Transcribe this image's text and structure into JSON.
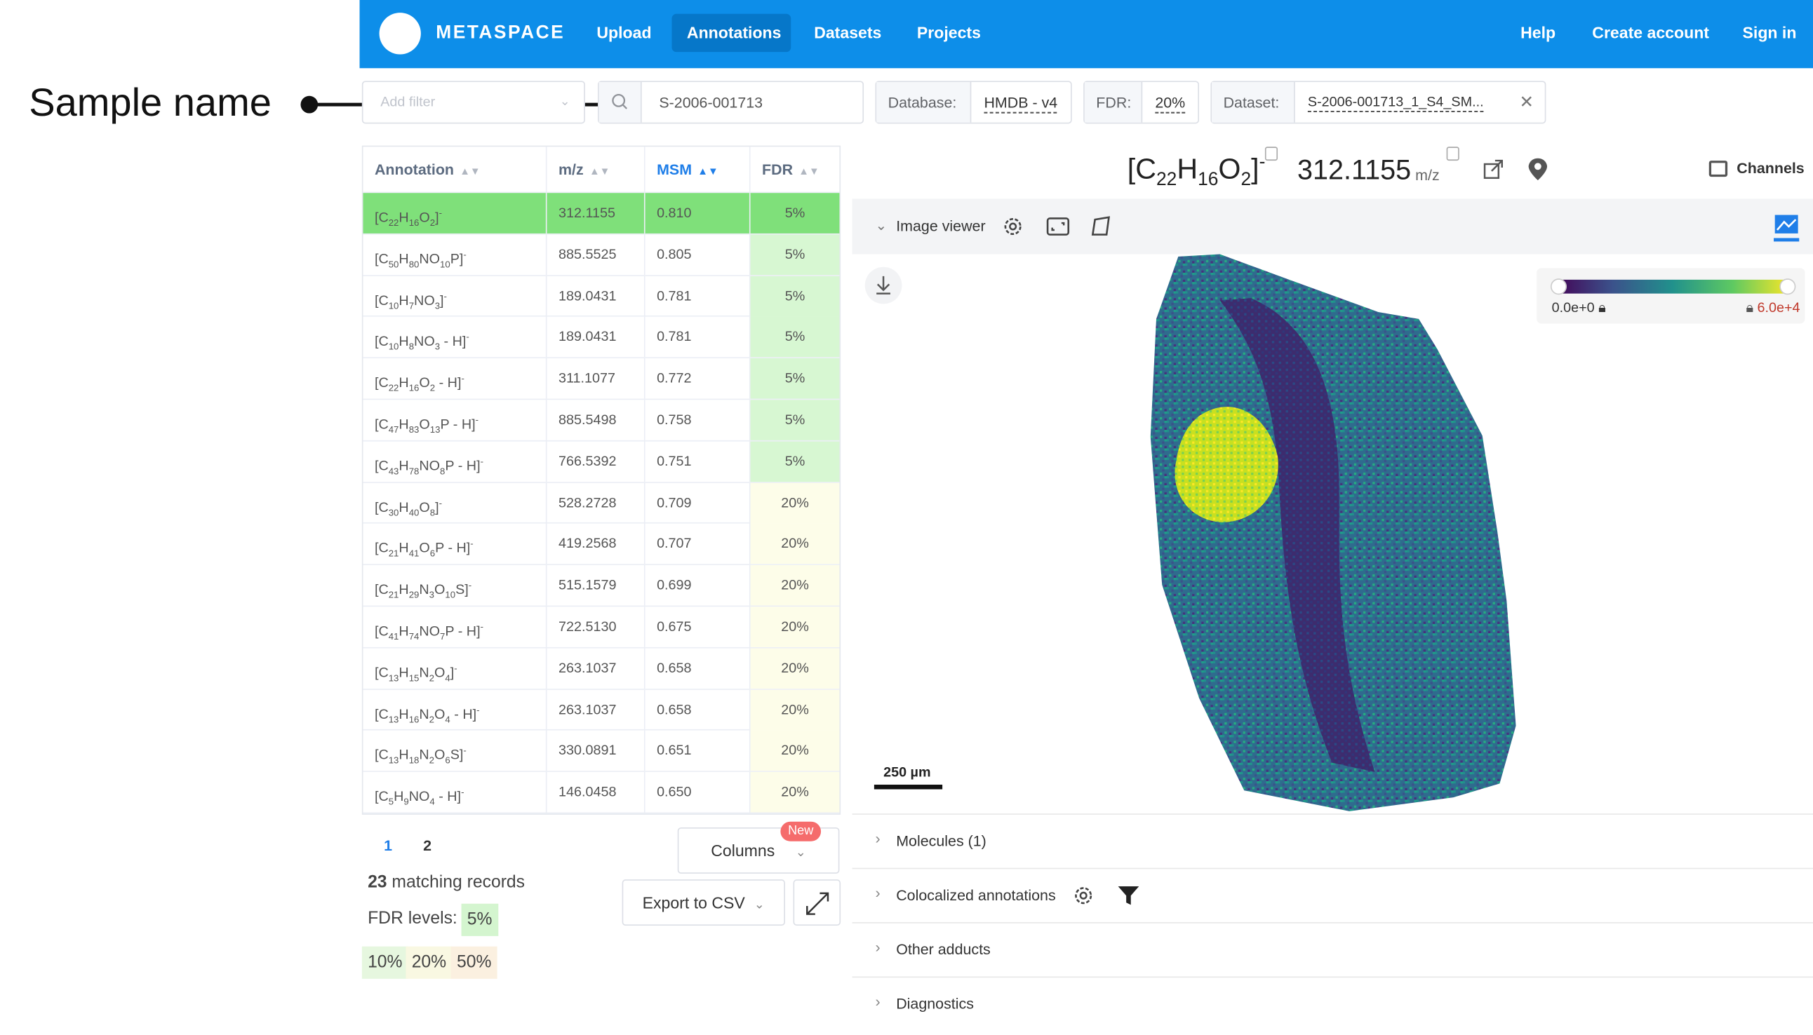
{
  "callout": {
    "label": "Sample name"
  },
  "header": {
    "logo_text": "METASPACE",
    "nav": [
      "Upload",
      "Annotations",
      "Datasets",
      "Projects"
    ],
    "right_nav": [
      "Help",
      "Create account",
      "Sign in"
    ],
    "colors": {
      "bar": "#0d8ee9",
      "active": "#0677c9"
    }
  },
  "filters": {
    "add_filter_placeholder": "Add filter",
    "search_value": "S-2006-001713",
    "database_label": "Database:",
    "database_value": "HMDB - v4",
    "fdr_label": "FDR:",
    "fdr_value": "20%",
    "dataset_label": "Dataset:",
    "dataset_value": "S-2006-001713_1_S4_SM..."
  },
  "table": {
    "headers": [
      "Annotation",
      "m/z",
      "MSM",
      "FDR"
    ],
    "rows": [
      {
        "formula": [
          "[C",
          "22",
          "H",
          "16",
          "O",
          "2",
          "]",
          "-"
        ],
        "mz": "312.1155",
        "msm": "0.810",
        "fdr": "5%"
      },
      {
        "formula": [
          "[C",
          "50",
          "H",
          "80",
          "NO",
          "10",
          "P]",
          "-"
        ],
        "mz": "885.5525",
        "msm": "0.805",
        "fdr": "5%"
      },
      {
        "formula": [
          "[C",
          "10",
          "H",
          "7",
          "NO",
          "3",
          "]",
          "-"
        ],
        "mz": "189.0431",
        "msm": "0.781",
        "fdr": "5%"
      },
      {
        "formula": [
          "[C",
          "10",
          "H",
          "8",
          "NO",
          "3",
          " - H]",
          "-"
        ],
        "mz": "189.0431",
        "msm": "0.781",
        "fdr": "5%"
      },
      {
        "formula": [
          "[C",
          "22",
          "H",
          "16",
          "O",
          "2",
          " - H]",
          "-"
        ],
        "mz": "311.1077",
        "msm": "0.772",
        "fdr": "5%"
      },
      {
        "formula": [
          "[C",
          "47",
          "H",
          "83",
          "O",
          "13",
          "P - H]",
          "-"
        ],
        "mz": "885.5498",
        "msm": "0.758",
        "fdr": "5%"
      },
      {
        "formula": [
          "[C",
          "43",
          "H",
          "78",
          "NO",
          "8",
          "P - H]",
          "-"
        ],
        "mz": "766.5392",
        "msm": "0.751",
        "fdr": "5%"
      },
      {
        "formula": [
          "[C",
          "30",
          "H",
          "40",
          "O",
          "8",
          "]",
          "-"
        ],
        "mz": "528.2728",
        "msm": "0.709",
        "fdr": "20%"
      },
      {
        "formula": [
          "[C",
          "21",
          "H",
          "41",
          "O",
          "6",
          "P - H]",
          "-"
        ],
        "mz": "419.2568",
        "msm": "0.707",
        "fdr": "20%"
      },
      {
        "formula": [
          "[C",
          "21",
          "H",
          "29",
          "N",
          "3",
          "O",
          "10",
          "S]",
          "-"
        ],
        "mz": "515.1579",
        "msm": "0.699",
        "fdr": "20%"
      },
      {
        "formula": [
          "[C",
          "41",
          "H",
          "74",
          "NO",
          "7",
          "P - H]",
          "-"
        ],
        "mz": "722.5130",
        "msm": "0.675",
        "fdr": "20%"
      },
      {
        "formula": [
          "[C",
          "13",
          "H",
          "15",
          "N",
          "2",
          "O",
          "4",
          "]",
          "-"
        ],
        "mz": "263.1037",
        "msm": "0.658",
        "fdr": "20%"
      },
      {
        "formula": [
          "[C",
          "13",
          "H",
          "16",
          "N",
          "2",
          "O",
          "4",
          " - H]",
          "-"
        ],
        "mz": "263.1037",
        "msm": "0.658",
        "fdr": "20%"
      },
      {
        "formula": [
          "[C",
          "13",
          "H",
          "18",
          "N",
          "2",
          "O",
          "6",
          "S]",
          "-"
        ],
        "mz": "330.0891",
        "msm": "0.651",
        "fdr": "20%"
      },
      {
        "formula": [
          "[C",
          "5",
          "H",
          "9",
          "NO",
          "4",
          " - H]",
          "-"
        ],
        "mz": "146.0458",
        "msm": "0.650",
        "fdr": "20%"
      }
    ],
    "selected_index": 0,
    "colors": {
      "selected": "#7fe07a",
      "fdr5": "#d7f7d2",
      "fdr20": "#fdfde9"
    }
  },
  "pagination": {
    "pages": [
      "1",
      "2"
    ]
  },
  "bottom": {
    "columns_label": "Columns",
    "new_badge": "New",
    "export_label": "Export to CSV",
    "records_count": "23",
    "records_suffix": " matching records",
    "fdr_levels_label": "FDR levels:",
    "levels": [
      {
        "label": "5%",
        "color": "#d4f5cf"
      },
      {
        "label": "10%",
        "color": "#e6f7df"
      },
      {
        "label": "20%",
        "color": "#f9f8e2"
      },
      {
        "label": "50%",
        "color": "#fbf0e0"
      }
    ]
  },
  "detail": {
    "formula": [
      "[C",
      "22",
      "H",
      "16",
      "O",
      "2",
      "]",
      "-"
    ],
    "mz": "312.1155",
    "mz_unit": "m/z",
    "channels_label": "Channels",
    "image_viewer_label": "Image viewer",
    "colorbar": {
      "min": "0.0e+0",
      "max": "6.0e+4"
    },
    "scale_label": "250 µm",
    "sections": [
      "Molecules (1)",
      "Colocalized annotations",
      "Other adducts",
      "Diagnostics"
    ]
  }
}
